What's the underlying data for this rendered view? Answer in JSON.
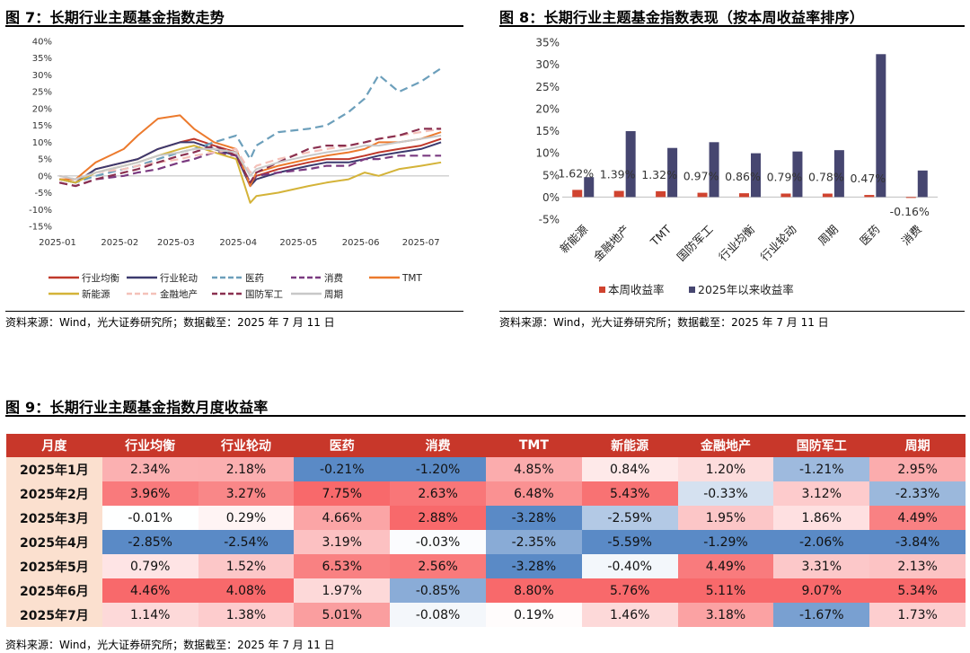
{
  "fig7": {
    "title": "图 7：长期行业主题基金指数走势",
    "source": "资料来源：Wind，光大证券研究所；数据截至：2025 年 7 月 11 日",
    "chart_data": {
      "type": "line",
      "y_ticks": [
        "40%",
        "35%",
        "30%",
        "25%",
        "20%",
        "15%",
        "10%",
        "5%",
        "0%",
        "-5%",
        "-10%",
        "-15%"
      ],
      "x_ticks": [
        "2025-01",
        "2025-02",
        "2025-03",
        "2025-04",
        "2025-05",
        "2025-06",
        "2025-07"
      ],
      "ylim": [
        -15,
        40
      ],
      "grid": false,
      "legend_placement": "bottom",
      "x": [
        "2025-01-02",
        "2025-01-10",
        "2025-01-20",
        "2025-02-03",
        "2025-02-10",
        "2025-02-20",
        "2025-03-03",
        "2025-03-10",
        "2025-03-20",
        "2025-03-31",
        "2025-04-07",
        "2025-04-10",
        "2025-04-21",
        "2025-05-06",
        "2025-05-15",
        "2025-05-26",
        "2025-06-03",
        "2025-06-10",
        "2025-06-20",
        "2025-07-01",
        "2025-07-11"
      ],
      "series": [
        {
          "name": "行业均衡",
          "color": "#c0392b",
          "dash": "solid",
          "values": [
            -1,
            -2,
            2,
            4,
            5,
            8,
            10,
            11,
            9,
            7,
            -3,
            0,
            2,
            4,
            5,
            5,
            6,
            7,
            8,
            9,
            11
          ]
        },
        {
          "name": "行业轮动",
          "color": "#3c3a6e",
          "dash": "solid",
          "values": [
            -1,
            -2,
            2,
            4,
            5,
            8,
            10,
            10,
            8,
            6,
            -3,
            -1,
            1,
            3,
            4,
            4,
            5,
            6,
            7,
            8,
            10
          ]
        },
        {
          "name": "医药",
          "color": "#6c9fbb",
          "dash": "dash",
          "values": [
            -1,
            -2,
            0,
            2,
            3,
            5,
            7,
            8,
            10,
            12,
            5,
            9,
            13,
            14,
            15,
            19,
            23,
            30,
            25,
            28,
            32
          ]
        },
        {
          "name": "消费",
          "color": "#7a3a80",
          "dash": "dash",
          "values": [
            -2,
            -3,
            -1,
            0,
            1,
            2,
            4,
            5,
            7,
            6,
            -2,
            0,
            1,
            2,
            3,
            3,
            5,
            5,
            6,
            6,
            6
          ]
        },
        {
          "name": "TMT",
          "color": "#ec7a2d",
          "dash": "solid",
          "values": [
            -1,
            -1,
            4,
            8,
            12,
            17,
            18,
            14,
            10,
            8,
            -3,
            1,
            3,
            5,
            6,
            7,
            8,
            10,
            10,
            11,
            13
          ]
        },
        {
          "name": "新能源",
          "color": "#d4b338",
          "dash": "solid",
          "values": [
            -1,
            -2,
            1,
            3,
            4,
            6,
            8,
            9,
            7,
            5,
            -8,
            -6,
            -5,
            -3,
            -2,
            -1,
            1,
            0,
            2,
            3,
            4
          ]
        },
        {
          "name": "金融地产",
          "color": "#f4c1b9",
          "dash": "dash",
          "values": [
            0,
            -1,
            1,
            2,
            3,
            4,
            5,
            6,
            7,
            8,
            1,
            3,
            5,
            7,
            8,
            9,
            10,
            11,
            12,
            13,
            14
          ]
        },
        {
          "name": "国防军工",
          "color": "#8a3050",
          "dash": "dash",
          "values": [
            -2,
            -3,
            -1,
            1,
            2,
            4,
            6,
            7,
            9,
            6,
            -2,
            1,
            4,
            8,
            9,
            9,
            10,
            11,
            12,
            14,
            14
          ]
        },
        {
          "name": "周期",
          "color": "#c8c8c8",
          "dash": "solid",
          "values": [
            0,
            -1,
            1,
            3,
            4,
            6,
            7,
            8,
            8,
            7,
            0,
            2,
            4,
            6,
            7,
            8,
            9,
            9,
            10,
            11,
            12
          ]
        }
      ]
    }
  },
  "fig8": {
    "title": "图 8：长期行业主题基金指数表现（按本周收益率排序）",
    "source": "资料来源：Wind，光大证券研究所；数据截至：2025 年 7 月 11 日",
    "chart_data": {
      "type": "bar",
      "categories": [
        "新能源",
        "金融地产",
        "TMT",
        "国防军工",
        "行业均衡",
        "行业轮动",
        "周期",
        "医药",
        "消费"
      ],
      "series": [
        {
          "name": "本周收益率",
          "color": "#d0432f",
          "values": [
            1.62,
            1.39,
            1.32,
            0.97,
            0.86,
            0.79,
            0.78,
            0.47,
            -0.16
          ]
        },
        {
          "name": "2025年以来收益率",
          "color": "#464670",
          "values": [
            4.5,
            14.9,
            11.1,
            12.4,
            9.9,
            10.3,
            10.6,
            32.3,
            6.0
          ]
        }
      ],
      "data_labels": [
        "1.62%",
        "1.39%",
        "1.32%",
        "0.97%",
        "0.86%",
        "0.79%",
        "0.78%",
        "0.47%",
        "-0.16%"
      ],
      "y_ticks": [
        "35%",
        "30%",
        "25%",
        "20%",
        "15%",
        "10%",
        "5%",
        "0%",
        "-5%"
      ],
      "ylim": [
        -5,
        35
      ],
      "grid": false,
      "legend_placement": "bottom"
    }
  },
  "fig9": {
    "title": "图 9：长期行业主题基金指数月度收益率",
    "source": "资料来源：Wind，光大证券研究所；数据截至：2025 年 7 月 11 日",
    "chart_data": {
      "type": "table",
      "headers": [
        "月度",
        "行业均衡",
        "行业轮动",
        "医药",
        "消费",
        "TMT",
        "新能源",
        "金融地产",
        "国防军工",
        "周期"
      ],
      "rows": [
        [
          "2025年1月",
          "2.34%",
          "2.18%",
          "-0.21%",
          "-1.20%",
          "4.85%",
          "0.84%",
          "1.20%",
          "-1.21%",
          "2.95%"
        ],
        [
          "2025年2月",
          "3.96%",
          "3.27%",
          "7.75%",
          "2.63%",
          "6.48%",
          "5.43%",
          "-0.33%",
          "3.12%",
          "-2.33%"
        ],
        [
          "2025年3月",
          "-0.01%",
          "0.29%",
          "4.66%",
          "2.88%",
          "-3.28%",
          "-2.59%",
          "1.95%",
          "1.86%",
          "4.49%"
        ],
        [
          "2025年4月",
          "-2.85%",
          "-2.54%",
          "3.19%",
          "-0.03%",
          "-2.35%",
          "-5.59%",
          "-1.29%",
          "-2.06%",
          "-3.84%"
        ],
        [
          "2025年5月",
          "0.79%",
          "1.52%",
          "6.53%",
          "2.56%",
          "-3.28%",
          "-0.40%",
          "4.49%",
          "3.31%",
          "2.13%"
        ],
        [
          "2025年6月",
          "4.46%",
          "4.08%",
          "1.97%",
          "-0.85%",
          "8.80%",
          "5.76%",
          "5.11%",
          "9.07%",
          "5.34%"
        ],
        [
          "2025年7月",
          "1.14%",
          "1.38%",
          "5.01%",
          "-0.08%",
          "0.19%",
          "1.46%",
          "3.18%",
          "-1.67%",
          "1.73%"
        ]
      ]
    }
  }
}
